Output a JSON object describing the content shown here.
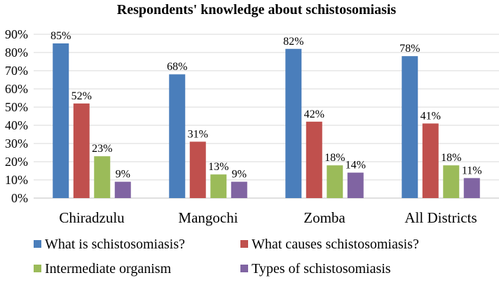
{
  "chart_data": {
    "type": "bar",
    "title": "Respondents' knowledge about schistosomiasis",
    "categories": [
      "Chiradzulu",
      "Mangochi",
      "Zomba",
      "All Districts"
    ],
    "series": [
      {
        "name": "What is schistosomiasis?",
        "color": "#4a7ebb",
        "values": [
          85,
          68,
          82,
          78
        ],
        "labels": [
          "85%",
          "68%",
          "82%",
          "78%"
        ]
      },
      {
        "name": "What causes schistosomiasis?",
        "color": "#c0504d",
        "values": [
          52,
          31,
          42,
          41
        ],
        "labels": [
          "52%",
          "31%",
          "42%",
          "41%"
        ]
      },
      {
        "name": "Intermediate organism",
        "color": "#9bbb59",
        "values": [
          23,
          13,
          18,
          18
        ],
        "labels": [
          "23%",
          "13%",
          "18%",
          "18%"
        ]
      },
      {
        "name": "Types of schistosomiasis",
        "color": "#8064a2",
        "values": [
          9,
          9,
          14,
          11
        ],
        "labels": [
          "9%",
          "9%",
          "14%",
          "11%"
        ]
      }
    ],
    "yticks": [
      "0%",
      "10%",
      "20%",
      "30%",
      "40%",
      "50%",
      "60%",
      "70%",
      "80%",
      "90%"
    ],
    "ylim": [
      0,
      90
    ],
    "grid": true,
    "legend": "bottom"
  }
}
